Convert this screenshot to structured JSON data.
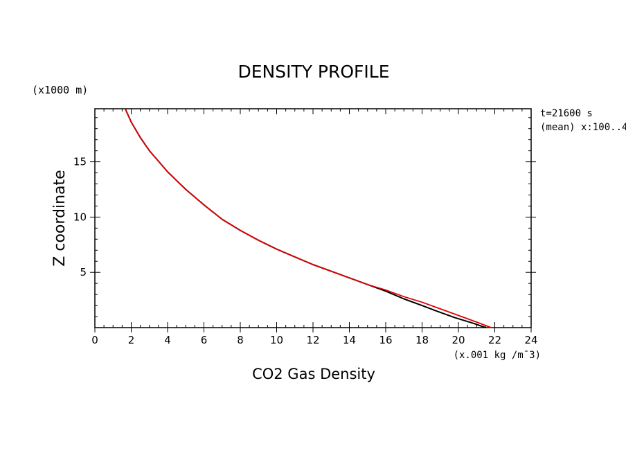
{
  "chart_data": {
    "type": "line",
    "title": "DENSITY PROFILE",
    "xlabel": "CO2 Gas Density",
    "ylabel": "Z coordinate",
    "x_units": "(x.001 kg /m¯3)",
    "y_units": "(x1000 m)",
    "annotations": [
      "t=21600 s",
      "(mean) x:100..4"
    ],
    "xlim": [
      0,
      24
    ],
    "ylim": [
      0,
      19.8
    ],
    "x_ticks": [
      0,
      2,
      4,
      6,
      8,
      10,
      12,
      14,
      16,
      18,
      20,
      22,
      24
    ],
    "y_ticks": [
      5,
      10,
      15
    ],
    "grid": false,
    "series": [
      {
        "color": "#000000",
        "x": [
          21.5,
          20.8,
          19.8,
          18.8,
          18.0,
          17.0,
          16.0,
          15.0,
          14.0,
          13.0,
          12.0,
          11.0,
          10.0,
          9.0,
          8.0,
          7.0,
          6.0,
          5.0,
          4.0,
          3.0,
          2.5,
          2.0,
          1.7
        ],
        "y": [
          0.0,
          0.4,
          0.9,
          1.5,
          2.0,
          2.6,
          3.3,
          3.9,
          4.5,
          5.1,
          5.7,
          6.4,
          7.1,
          7.9,
          8.8,
          9.8,
          11.1,
          12.5,
          14.1,
          16.0,
          17.2,
          18.6,
          19.7
        ]
      },
      {
        "color": "#e00000",
        "x": [
          21.8,
          21.0,
          20.0,
          19.0,
          18.0,
          17.0,
          16.0,
          15.0,
          14.0,
          13.0,
          12.0,
          11.0,
          10.0,
          9.0,
          8.0,
          7.0,
          6.0,
          5.0,
          4.0,
          3.0,
          2.5,
          2.0,
          1.7
        ],
        "y": [
          0.0,
          0.5,
          1.1,
          1.7,
          2.3,
          2.8,
          3.4,
          3.9,
          4.5,
          5.1,
          5.7,
          6.4,
          7.1,
          7.9,
          8.8,
          9.8,
          11.1,
          12.5,
          14.1,
          16.0,
          17.2,
          18.6,
          19.7
        ]
      }
    ],
    "axis_color": "#000000"
  }
}
